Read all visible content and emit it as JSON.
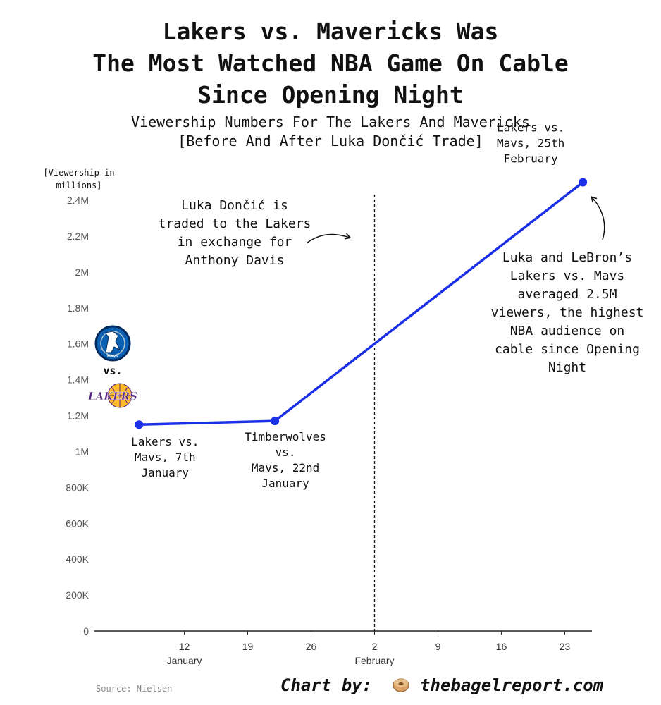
{
  "title_lines": [
    "Lakers vs. Mavericks Was",
    "The Most Watched NBA Game On Cable",
    "Since Opening Night"
  ],
  "subtitle_lines": [
    "Viewership Numbers For The Lakers And Mavericks",
    "[Before And After Luka Dončić Trade]"
  ],
  "chart_data": {
    "type": "line",
    "title": "Lakers vs. Mavericks Was The Most Watched NBA Game On Cable Since Opening Night",
    "subtitle": "Viewership Numbers For The Lakers And Mavericks [Before And After Luka Dončić Trade]",
    "ylabel_lines": [
      "[Viewership in",
      "millions]"
    ],
    "ylim": [
      0,
      2400000
    ],
    "y_ticks": [
      0,
      200000,
      400000,
      600000,
      800000,
      1000000,
      1200000,
      1400000,
      1600000,
      1800000,
      2000000,
      2200000,
      2400000
    ],
    "y_tick_labels": [
      "0",
      "200K",
      "400K",
      "600K",
      "800K",
      "1M",
      "1.2M",
      "1.4M",
      "1.6M",
      "1.8M",
      "2M",
      "2.2M",
      "2.4M"
    ],
    "x_ticks": [
      {
        "day": 12,
        "label": "12",
        "sublabel": "January"
      },
      {
        "day": 19,
        "label": "19",
        "sublabel": ""
      },
      {
        "day": 26,
        "label": "26",
        "sublabel": ""
      },
      {
        "day": 33,
        "label": "2",
        "sublabel": "February"
      },
      {
        "day": 40,
        "label": "9",
        "sublabel": ""
      },
      {
        "day": 47,
        "label": "16",
        "sublabel": ""
      },
      {
        "day": 54,
        "label": "23",
        "sublabel": ""
      }
    ],
    "xlim_days": [
      2,
      57
    ],
    "series": [
      {
        "name": "Viewership",
        "color": "#1a2fe6",
        "points": [
          {
            "day": 7,
            "value": 1150000,
            "label_lines": [
              "Lakers vs.",
              "Mavs, 7th",
              "January"
            ]
          },
          {
            "day": 22,
            "value": 1170000,
            "label_lines": [
              "Timberwolves",
              "vs.",
              "Mavs, 22nd",
              "January"
            ]
          },
          {
            "day": 56,
            "value": 2500000,
            "label_lines": [
              "Lakers vs.",
              "Mavs, 25th",
              "February"
            ]
          }
        ]
      }
    ],
    "trade_marker_day": 33,
    "annotations": {
      "trade": [
        "Luka Dončić is",
        "traded to the Lakers",
        "in exchange for",
        "Anthony Davis"
      ],
      "peak": [
        "Luka and LeBron’s",
        "Lakers vs. Mavs",
        "averaged 2.5M",
        "viewers, the highest",
        "NBA audience on",
        "cable since Opening",
        "Night"
      ]
    },
    "logo_vs": "vs.",
    "logo_texts": {
      "mavs": "MAVS",
      "lakers": "LAKERS"
    }
  },
  "footer": {
    "source": "Source: Nielsen",
    "chart_by": "Chart by:",
    "site": "thebagelreport.com"
  },
  "colors": {
    "line": "#1a2fe6",
    "axis": "#222222",
    "tick_text": "#555555",
    "mavs_blue": "#0a61b3",
    "mavs_navy": "#002b5c",
    "lakers_purple": "#552583",
    "lakers_gold": "#fdb927"
  }
}
